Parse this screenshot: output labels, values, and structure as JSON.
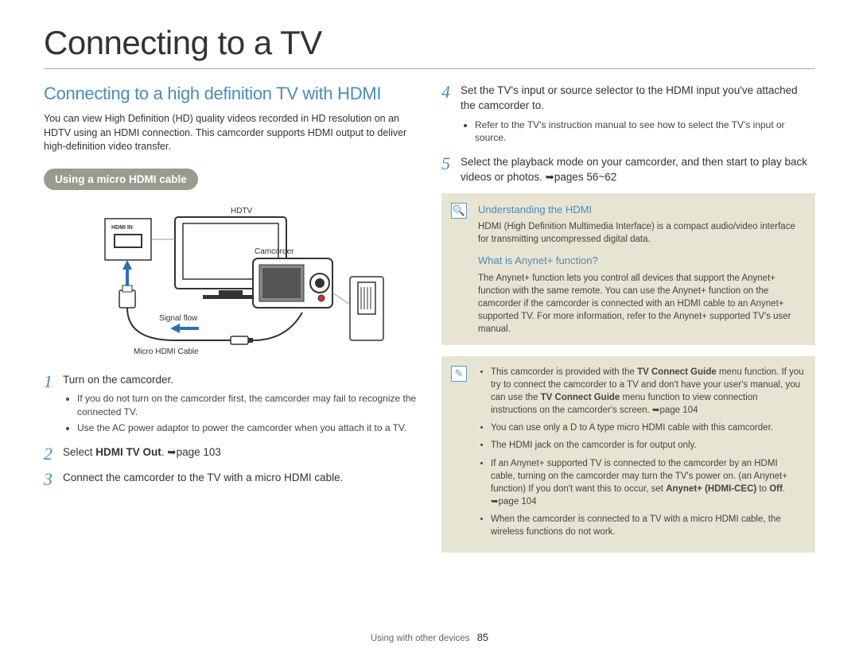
{
  "page": {
    "title": "Connecting to a TV",
    "section_heading": "Connecting to a high definition TV with HDMI",
    "intro": "You can view High Definition (HD) quality videos recorded in HD resolution on an HDTV using an HDMI connection. This camcorder supports HDMI output to deliver high-definition video transfer.",
    "pill_label": "Using a micro HDMI cable",
    "footer_label": "Using with other devices",
    "page_number": "85"
  },
  "diagram": {
    "hdtv_label": "HDTV",
    "hdmi_in_label": "HDMI IN",
    "camcorder_label": "Camcorder",
    "signal_flow_label": "Signal flow",
    "cable_label": "Micro HDMI Cable",
    "arrow_color": "#2b6fb0",
    "box_stroke": "#333333"
  },
  "steps_left": [
    {
      "num": "1",
      "text": "Turn on the camcorder.",
      "sub": [
        "If you do not turn on the camcorder first, the camcorder may fail to recognize the connected TV.",
        "Use the AC power adaptor to power the camcorder when you attach it to a TV."
      ]
    },
    {
      "num": "2",
      "text_html": "Select <b>HDMI TV Out</b>. ➥page 103"
    },
    {
      "num": "3",
      "text": "Connect the camcorder to the TV with a micro HDMI cable."
    }
  ],
  "steps_right": [
    {
      "num": "4",
      "text": "Set the TV's input or source selector to the HDMI input you've attached the camcorder to.",
      "sub": [
        "Refer to the TV's instruction manual to see how to select the TV's input or source."
      ]
    },
    {
      "num": "5",
      "text": "Select the playback mode on your camcorder, and then start to play back videos or photos. ➥pages 56~62"
    }
  ],
  "info1": {
    "icon": "🔍",
    "h1": "Understanding the HDMI",
    "p1": "HDMI (High Definition Multimedia Interface) is a compact audio/video interface for transmitting uncompressed digital data.",
    "h2": "What is Anynet+ function?",
    "p2": "The Anynet+ function lets you control all devices that support the Anynet+ function with the same remote. You can use the Anynet+ function on the camcorder if the camcorder is connected with an HDMI cable to an Anynet+ supported TV. For more information, refer to the Anynet+ supported TV's user manual."
  },
  "info2": {
    "icon": "✎",
    "items": [
      "This camcorder is provided with the <b>TV Connect Guide</b> menu function. If you try to connect the camcorder to a TV and don't have your user's manual, you can use the <b>TV Connect Guide</b> menu function to view connection instructions on the camcorder's screen. ➥page 104",
      "You can use only a D to A type micro HDMI cable with this camcorder.",
      "The HDMI jack on the camcorder is for output only.",
      "If an Anynet+ supported TV is connected to the camcorder by an HDMI cable, turning on the camcorder may turn the TV's power on. (an Anynet+ function) If you don't want this to occur, set <b>Anynet+ (HDMI-CEC)</b> to <b>Off</b>. ➥page 104",
      "When the camcorder is connected to a TV with a micro HDMI cable, the wireless functions do not work."
    ]
  },
  "colors": {
    "heading": "#4a8db8",
    "pill_bg": "#9a9a8e",
    "info_bg": "#e8e4d4",
    "text": "#333333"
  }
}
